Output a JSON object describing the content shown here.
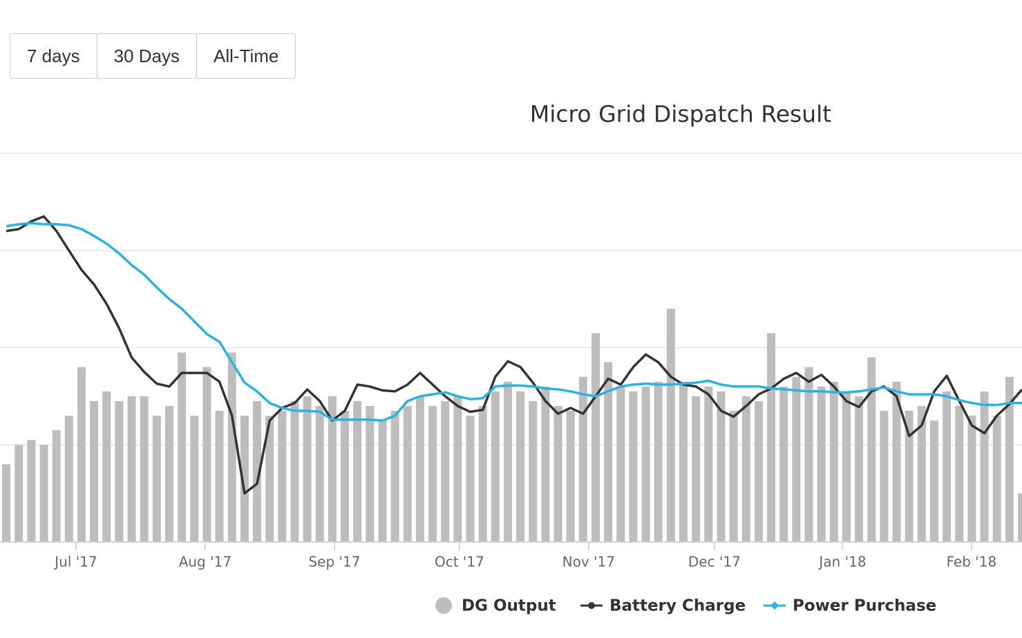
{
  "buttons": [
    "7 days",
    "30 Days",
    "All-Time"
  ],
  "chart_data": {
    "type": "combo",
    "title": "Micro Grid Dispatch Result",
    "xlim": [
      0,
      81.5
    ],
    "xticks": [
      {
        "value": 6.06,
        "label": "Jul '17"
      },
      {
        "value": 16.36,
        "label": "Aug '17"
      },
      {
        "value": 26.67,
        "label": "Sep '17"
      },
      {
        "value": 36.64,
        "label": "Oct '17"
      },
      {
        "value": 46.94,
        "label": "Nov '17"
      },
      {
        "value": 56.97,
        "label": "Dec '17"
      },
      {
        "value": 67.2,
        "label": "Jan '18"
      },
      {
        "value": 77.47,
        "label": "Feb '18"
      }
    ],
    "ylim": [
      0,
      4
    ],
    "yticks": [
      0,
      1,
      2,
      3,
      4
    ],
    "grid": true,
    "legend": "bottom",
    "series": [
      {
        "name": "DG Output",
        "type": "bar",
        "color": "#bdbdbd",
        "values": [
          0.8,
          1.0,
          1.05,
          1.0,
          1.15,
          1.3,
          1.8,
          1.45,
          1.55,
          1.45,
          1.5,
          1.5,
          1.3,
          1.4,
          1.95,
          1.3,
          1.8,
          1.35,
          1.95,
          1.3,
          1.45,
          1.3,
          1.35,
          1.45,
          1.5,
          1.4,
          1.5,
          1.35,
          1.45,
          1.4,
          1.25,
          1.35,
          1.4,
          1.5,
          1.4,
          1.45,
          1.5,
          1.3,
          1.4,
          1.55,
          1.65,
          1.55,
          1.45,
          1.6,
          1.4,
          1.35,
          1.7,
          2.15,
          1.85,
          1.6,
          1.55,
          1.6,
          1.65,
          2.4,
          1.65,
          1.5,
          1.6,
          1.55,
          1.35,
          1.5,
          1.45,
          2.15,
          1.6,
          1.7,
          1.8,
          1.6,
          1.65,
          1.55,
          1.5,
          1.9,
          1.35,
          1.65,
          1.35,
          1.4,
          1.25,
          1.55,
          1.4,
          1.3,
          1.55,
          1.3,
          1.7,
          0.5
        ]
      },
      {
        "name": "Battery Charge",
        "type": "line",
        "color": "#333333",
        "values": [
          3.2,
          3.22,
          3.3,
          3.35,
          3.2,
          3.0,
          2.8,
          2.65,
          2.45,
          2.2,
          1.9,
          1.75,
          1.63,
          1.6,
          1.74,
          1.74,
          1.74,
          1.65,
          1.3,
          0.5,
          0.6,
          1.25,
          1.38,
          1.43,
          1.57,
          1.45,
          1.25,
          1.35,
          1.62,
          1.6,
          1.56,
          1.55,
          1.62,
          1.74,
          1.62,
          1.5,
          1.4,
          1.34,
          1.36,
          1.7,
          1.86,
          1.8,
          1.64,
          1.45,
          1.32,
          1.38,
          1.32,
          1.5,
          1.68,
          1.62,
          1.8,
          1.93,
          1.85,
          1.7,
          1.62,
          1.6,
          1.52,
          1.35,
          1.29,
          1.4,
          1.52,
          1.58,
          1.68,
          1.74,
          1.65,
          1.72,
          1.6,
          1.45,
          1.39,
          1.55,
          1.6,
          1.5,
          1.09,
          1.2,
          1.55,
          1.71,
          1.45,
          1.2,
          1.12,
          1.3,
          1.42,
          1.57
        ]
      },
      {
        "name": "Power Purchase",
        "type": "line",
        "color": "#24b5e6",
        "values": [
          3.25,
          3.27,
          3.28,
          3.27,
          3.27,
          3.26,
          3.22,
          3.15,
          3.07,
          2.97,
          2.85,
          2.75,
          2.62,
          2.5,
          2.4,
          2.27,
          2.14,
          2.06,
          1.85,
          1.64,
          1.55,
          1.43,
          1.38,
          1.35,
          1.35,
          1.34,
          1.26,
          1.26,
          1.26,
          1.26,
          1.25,
          1.3,
          1.45,
          1.5,
          1.52,
          1.54,
          1.5,
          1.47,
          1.48,
          1.6,
          1.61,
          1.61,
          1.6,
          1.58,
          1.57,
          1.55,
          1.52,
          1.5,
          1.55,
          1.6,
          1.62,
          1.63,
          1.62,
          1.62,
          1.63,
          1.64,
          1.66,
          1.62,
          1.6,
          1.6,
          1.6,
          1.58,
          1.57,
          1.56,
          1.55,
          1.55,
          1.54,
          1.54,
          1.55,
          1.57,
          1.59,
          1.55,
          1.52,
          1.52,
          1.52,
          1.5,
          1.46,
          1.43,
          1.41,
          1.41,
          1.43,
          1.43
        ]
      }
    ]
  }
}
